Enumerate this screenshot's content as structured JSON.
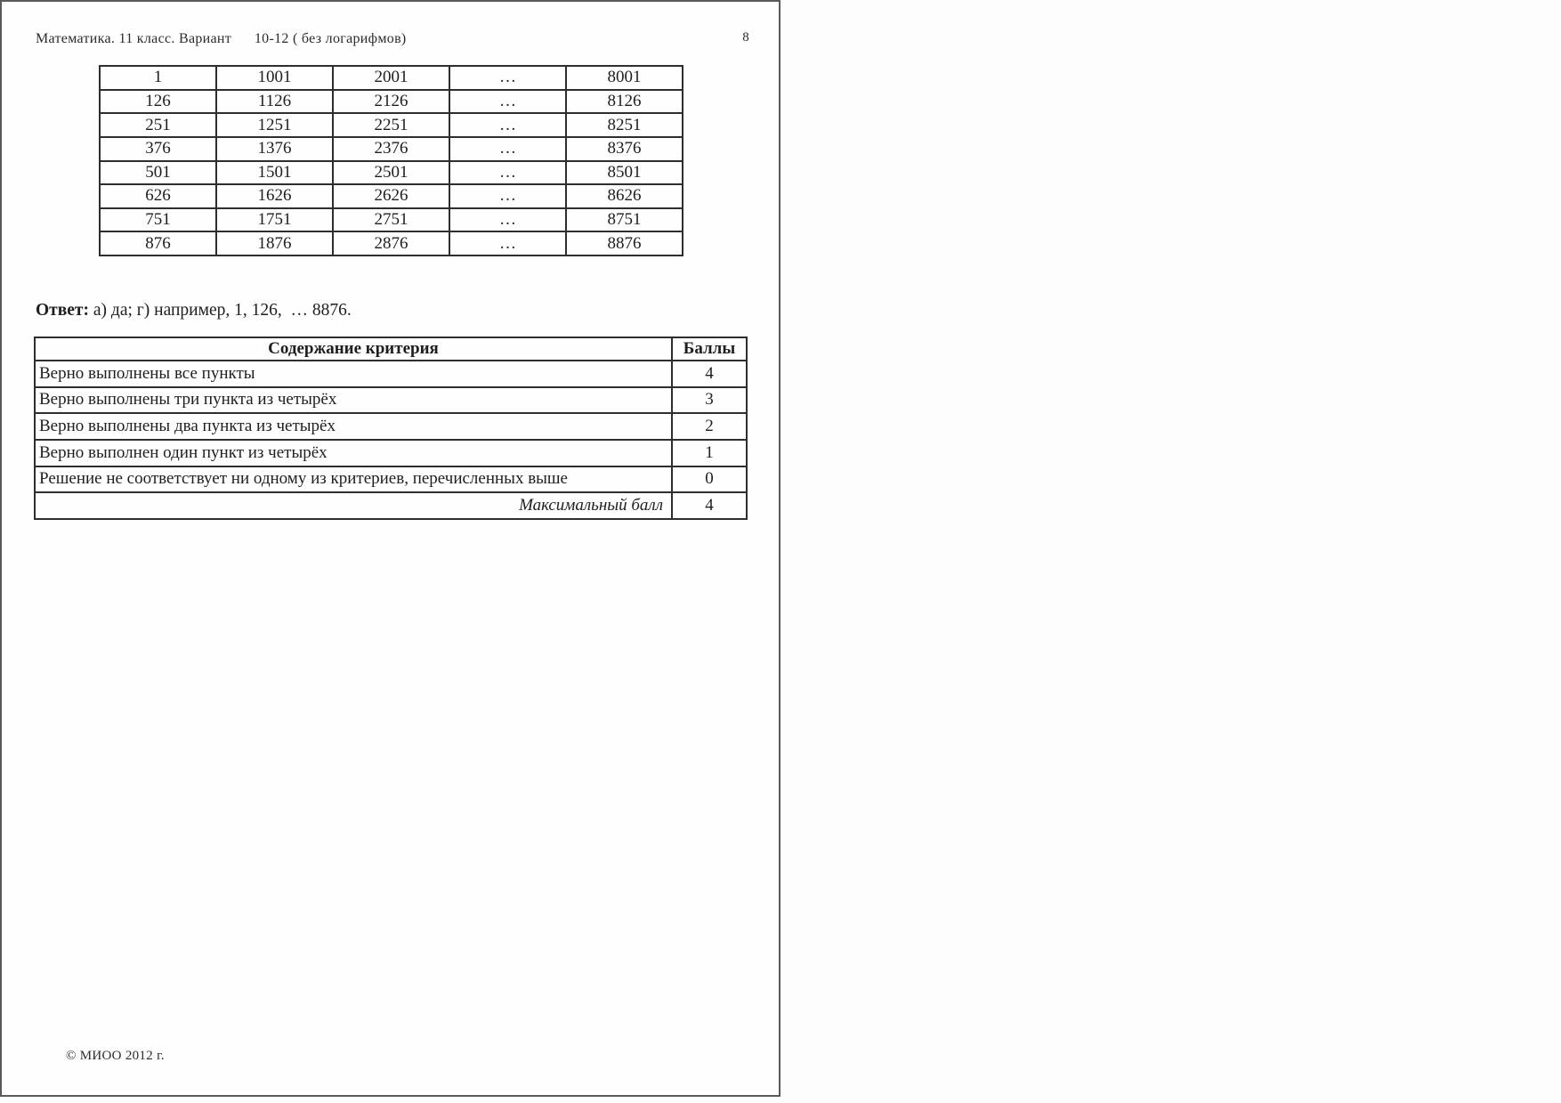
{
  "doc": {
    "header": "Математика. 11 класс. Вариант      10-12 ( без логарифмов)",
    "page_number": "8",
    "footer": "© МИОО 2012 г."
  },
  "number_table": {
    "rows": [
      [
        "1",
        "1001",
        "2001",
        "…",
        "8001"
      ],
      [
        "126",
        "1126",
        "2126",
        "…",
        "8126"
      ],
      [
        "251",
        "1251",
        "2251",
        "…",
        "8251"
      ],
      [
        "376",
        "1376",
        "2376",
        "…",
        "8376"
      ],
      [
        "501",
        "1501",
        "2501",
        "…",
        "8501"
      ],
      [
        "626",
        "1626",
        "2626",
        "…",
        "8626"
      ],
      [
        "751",
        "1751",
        "2751",
        "…",
        "8751"
      ],
      [
        "876",
        "1876",
        "2876",
        "…",
        "8876"
      ]
    ]
  },
  "answer": {
    "label": "Ответ:",
    "text": " а) да; г) например, 1, 126,  … 8876."
  },
  "criteria_table": {
    "headers": [
      "Содержание критерия",
      "Баллы"
    ],
    "rows": [
      {
        "criterion": "Верно выполнены все пункты",
        "score": "4",
        "italic": false
      },
      {
        "criterion": "Верно выполнены три пункта из четырёх",
        "score": "3",
        "italic": false
      },
      {
        "criterion": "Верно выполнены два пункта из четырёх",
        "score": "2",
        "italic": false
      },
      {
        "criterion": "Верно выполнен один пункт из четырёх",
        "score": "1",
        "italic": false
      },
      {
        "criterion": "Решение не соответствует ни одному из критериев, перечисленных выше",
        "score": "0",
        "italic": false
      },
      {
        "criterion": "Максимальный балл",
        "score": "4",
        "italic": true
      }
    ]
  },
  "colors": {
    "ink": "#1e1e1e",
    "page_background": "#fefefe",
    "border": "#2e2e2e"
  }
}
